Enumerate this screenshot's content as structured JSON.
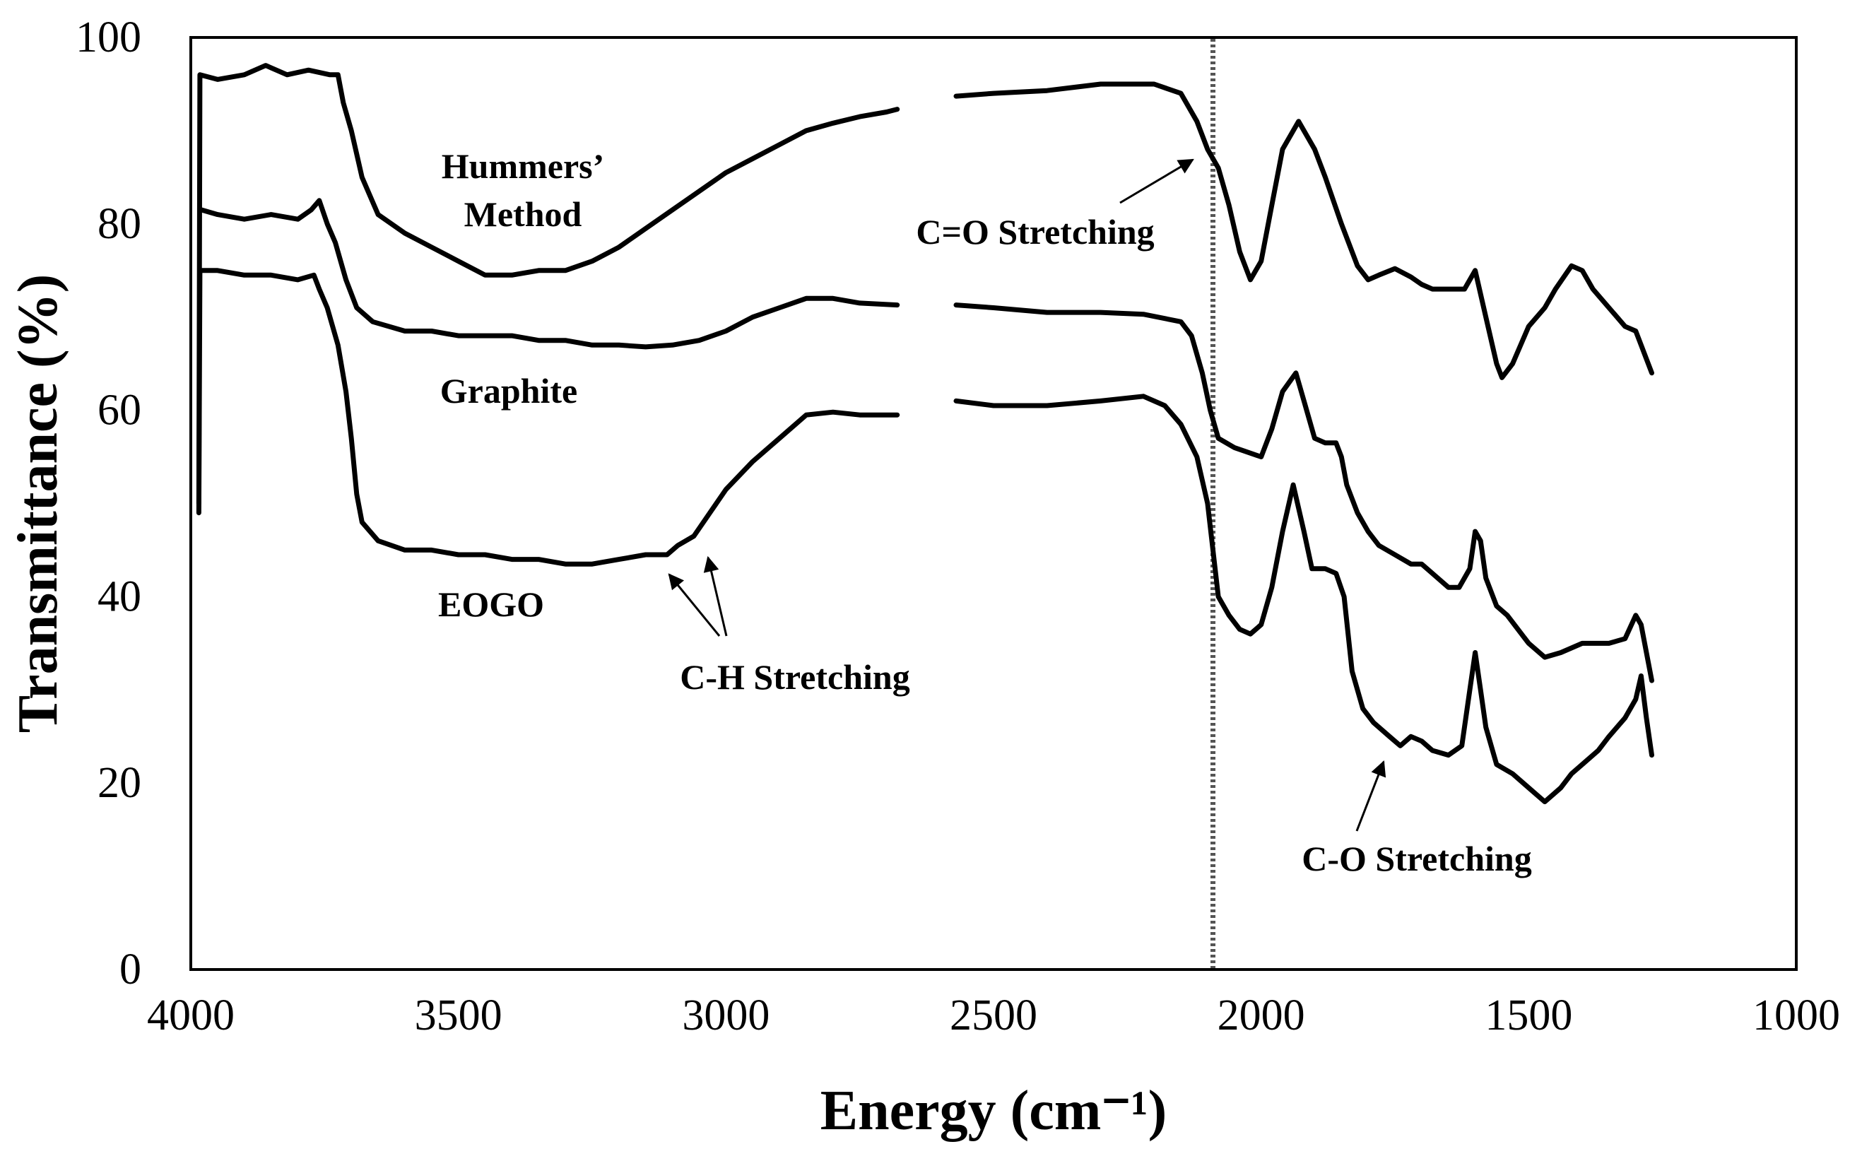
{
  "chart_data": {
    "type": "line",
    "title": "",
    "xlabel": "Energy (cm⁻¹)",
    "ylabel": "Transmittance (%)",
    "xlim": [
      4000,
      1000
    ],
    "ylim": [
      0,
      100
    ],
    "x_ticks": [
      4000,
      3500,
      3000,
      2500,
      2000,
      1500,
      1000
    ],
    "x_tick_labels": [
      "4000",
      "3500",
      "3000",
      "2500",
      "2000",
      "1500",
      "1000"
    ],
    "y_ticks": [
      0,
      20,
      40,
      60,
      80,
      100
    ],
    "y_tick_labels": [
      "0",
      "20",
      "40",
      "60",
      "80",
      "100"
    ],
    "gap_region": [
      2680,
      2570
    ],
    "reference_line_x": 2090,
    "series": [
      {
        "name": "Hummers’ Method",
        "label_lines": [
          "Hummers’",
          "Method"
        ],
        "points": [
          [
            3985,
            50
          ],
          [
            3983,
            96
          ],
          [
            3950,
            95.5
          ],
          [
            3900,
            96
          ],
          [
            3860,
            97
          ],
          [
            3820,
            96
          ],
          [
            3780,
            96.5
          ],
          [
            3740,
            96
          ],
          [
            3725,
            96
          ],
          [
            3715,
            93
          ],
          [
            3700,
            90
          ],
          [
            3680,
            85
          ],
          [
            3650,
            81
          ],
          [
            3600,
            79
          ],
          [
            3550,
            77.5
          ],
          [
            3500,
            76
          ],
          [
            3450,
            74.5
          ],
          [
            3400,
            74.5
          ],
          [
            3350,
            75
          ],
          [
            3300,
            75
          ],
          [
            3250,
            76
          ],
          [
            3200,
            77.5
          ],
          [
            3150,
            79.5
          ],
          [
            3100,
            81.5
          ],
          [
            3050,
            83.5
          ],
          [
            3000,
            85.5
          ],
          [
            2950,
            87
          ],
          [
            2900,
            88.5
          ],
          [
            2850,
            90
          ],
          [
            2800,
            90.8
          ],
          [
            2750,
            91.5
          ],
          [
            2700,
            92
          ],
          [
            2680,
            92.3
          ],
          [
            2570,
            93.7
          ],
          [
            2500,
            94
          ],
          [
            2400,
            94.3
          ],
          [
            2300,
            95
          ],
          [
            2200,
            95
          ],
          [
            2150,
            94
          ],
          [
            2120,
            91
          ],
          [
            2100,
            88
          ],
          [
            2080,
            86
          ],
          [
            2060,
            82
          ],
          [
            2040,
            77
          ],
          [
            2020,
            74
          ],
          [
            2000,
            76
          ],
          [
            1980,
            82
          ],
          [
            1960,
            88
          ],
          [
            1930,
            91
          ],
          [
            1900,
            88
          ],
          [
            1880,
            85
          ],
          [
            1850,
            80
          ],
          [
            1820,
            75.5
          ],
          [
            1800,
            74
          ],
          [
            1780,
            74.5
          ],
          [
            1750,
            75.2
          ],
          [
            1720,
            74.3
          ],
          [
            1700,
            73.5
          ],
          [
            1680,
            73
          ],
          [
            1650,
            73
          ],
          [
            1620,
            73
          ],
          [
            1600,
            75
          ],
          [
            1580,
            70
          ],
          [
            1560,
            65
          ],
          [
            1550,
            63.5
          ],
          [
            1530,
            65
          ],
          [
            1500,
            69
          ],
          [
            1470,
            71
          ],
          [
            1450,
            73
          ],
          [
            1420,
            75.5
          ],
          [
            1400,
            75
          ],
          [
            1380,
            73
          ],
          [
            1350,
            71
          ],
          [
            1320,
            69
          ],
          [
            1300,
            68.5
          ],
          [
            1290,
            67
          ],
          [
            1270,
            64
          ]
        ]
      },
      {
        "name": "Graphite",
        "label_lines": [
          "Graphite"
        ],
        "points": [
          [
            3980,
            81.5
          ],
          [
            3950,
            81
          ],
          [
            3900,
            80.5
          ],
          [
            3850,
            81
          ],
          [
            3800,
            80.5
          ],
          [
            3775,
            81.5
          ],
          [
            3760,
            82.5
          ],
          [
            3745,
            80
          ],
          [
            3730,
            78
          ],
          [
            3710,
            74
          ],
          [
            3690,
            71
          ],
          [
            3660,
            69.5
          ],
          [
            3600,
            68.5
          ],
          [
            3550,
            68.5
          ],
          [
            3500,
            68
          ],
          [
            3450,
            68
          ],
          [
            3400,
            68
          ],
          [
            3350,
            67.5
          ],
          [
            3300,
            67.5
          ],
          [
            3250,
            67
          ],
          [
            3200,
            67
          ],
          [
            3150,
            66.8
          ],
          [
            3100,
            67
          ],
          [
            3050,
            67.5
          ],
          [
            3000,
            68.5
          ],
          [
            2950,
            70
          ],
          [
            2900,
            71
          ],
          [
            2850,
            72
          ],
          [
            2800,
            72
          ],
          [
            2750,
            71.5
          ],
          [
            2680,
            71.3
          ],
          [
            2570,
            71.3
          ],
          [
            2500,
            71
          ],
          [
            2400,
            70.5
          ],
          [
            2300,
            70.5
          ],
          [
            2220,
            70.3
          ],
          [
            2150,
            69.5
          ],
          [
            2130,
            68
          ],
          [
            2110,
            64
          ],
          [
            2095,
            60
          ],
          [
            2080,
            57
          ],
          [
            2050,
            56
          ],
          [
            2000,
            55
          ],
          [
            1980,
            58
          ],
          [
            1960,
            62
          ],
          [
            1935,
            64
          ],
          [
            1920,
            61
          ],
          [
            1900,
            57
          ],
          [
            1880,
            56.5
          ],
          [
            1860,
            56.5
          ],
          [
            1850,
            55
          ],
          [
            1840,
            52
          ],
          [
            1820,
            49
          ],
          [
            1800,
            47
          ],
          [
            1780,
            45.5
          ],
          [
            1750,
            44.5
          ],
          [
            1720,
            43.5
          ],
          [
            1700,
            43.5
          ],
          [
            1680,
            42.5
          ],
          [
            1650,
            41
          ],
          [
            1630,
            41
          ],
          [
            1610,
            43
          ],
          [
            1600,
            47
          ],
          [
            1590,
            46
          ],
          [
            1580,
            42
          ],
          [
            1560,
            39
          ],
          [
            1540,
            38
          ],
          [
            1500,
            35
          ],
          [
            1470,
            33.5
          ],
          [
            1440,
            34
          ],
          [
            1400,
            35
          ],
          [
            1350,
            35
          ],
          [
            1320,
            35.5
          ],
          [
            1300,
            38
          ],
          [
            1290,
            37
          ],
          [
            1270,
            31
          ]
        ]
      },
      {
        "name": "EOGO",
        "label_lines": [
          "EOGO"
        ],
        "points": [
          [
            3985,
            49
          ],
          [
            3983,
            75
          ],
          [
            3950,
            75
          ],
          [
            3900,
            74.5
          ],
          [
            3850,
            74.5
          ],
          [
            3800,
            74
          ],
          [
            3770,
            74.5
          ],
          [
            3760,
            73
          ],
          [
            3745,
            71
          ],
          [
            3725,
            67
          ],
          [
            3710,
            62
          ],
          [
            3700,
            57
          ],
          [
            3690,
            51
          ],
          [
            3680,
            48
          ],
          [
            3650,
            46
          ],
          [
            3600,
            45
          ],
          [
            3550,
            45
          ],
          [
            3500,
            44.5
          ],
          [
            3450,
            44.5
          ],
          [
            3400,
            44
          ],
          [
            3350,
            44
          ],
          [
            3300,
            43.5
          ],
          [
            3250,
            43.5
          ],
          [
            3200,
            44
          ],
          [
            3150,
            44.5
          ],
          [
            3110,
            44.5
          ],
          [
            3090,
            45.5
          ],
          [
            3060,
            46.5
          ],
          [
            3030,
            49
          ],
          [
            3000,
            51.5
          ],
          [
            2950,
            54.5
          ],
          [
            2900,
            57
          ],
          [
            2850,
            59.5
          ],
          [
            2800,
            59.8
          ],
          [
            2750,
            59.5
          ],
          [
            2680,
            59.5
          ],
          [
            2570,
            61
          ],
          [
            2500,
            60.5
          ],
          [
            2400,
            60.5
          ],
          [
            2300,
            61
          ],
          [
            2220,
            61.5
          ],
          [
            2180,
            60.5
          ],
          [
            2150,
            58.5
          ],
          [
            2120,
            55
          ],
          [
            2100,
            50
          ],
          [
            2090,
            45
          ],
          [
            2080,
            40
          ],
          [
            2060,
            38
          ],
          [
            2040,
            36.5
          ],
          [
            2020,
            36
          ],
          [
            2000,
            37
          ],
          [
            1980,
            41
          ],
          [
            1960,
            47
          ],
          [
            1940,
            52
          ],
          [
            1920,
            47
          ],
          [
            1905,
            43
          ],
          [
            1880,
            43
          ],
          [
            1860,
            42.5
          ],
          [
            1845,
            40
          ],
          [
            1830,
            32
          ],
          [
            1810,
            28
          ],
          [
            1790,
            26.5
          ],
          [
            1760,
            25
          ],
          [
            1740,
            24
          ],
          [
            1720,
            25
          ],
          [
            1700,
            24.5
          ],
          [
            1680,
            23.5
          ],
          [
            1650,
            23
          ],
          [
            1625,
            24
          ],
          [
            1610,
            30
          ],
          [
            1600,
            34
          ],
          [
            1590,
            30
          ],
          [
            1580,
            26
          ],
          [
            1560,
            22
          ],
          [
            1530,
            21
          ],
          [
            1500,
            19.5
          ],
          [
            1470,
            18
          ],
          [
            1440,
            19.5
          ],
          [
            1420,
            21
          ],
          [
            1400,
            22
          ],
          [
            1370,
            23.5
          ],
          [
            1350,
            25
          ],
          [
            1320,
            27
          ],
          [
            1300,
            29
          ],
          [
            1290,
            31.5
          ],
          [
            1280,
            27
          ],
          [
            1270,
            23
          ]
        ]
      }
    ],
    "annotations": [
      {
        "text": "C=O Stretching",
        "anchor_x": 2130,
        "anchor_y": 76.5,
        "tip": [
          2110,
          86
        ]
      },
      {
        "text": "C-H Stretching",
        "anchor_x": 2980,
        "anchor_y": 35,
        "tips": [
          [
            3100,
            42.5
          ],
          [
            3060,
            44.5
          ]
        ]
      },
      {
        "text": "C-O Stretching",
        "anchor_x": 1700,
        "anchor_y": 11.5,
        "tip": [
          1760,
          23
        ]
      }
    ]
  }
}
